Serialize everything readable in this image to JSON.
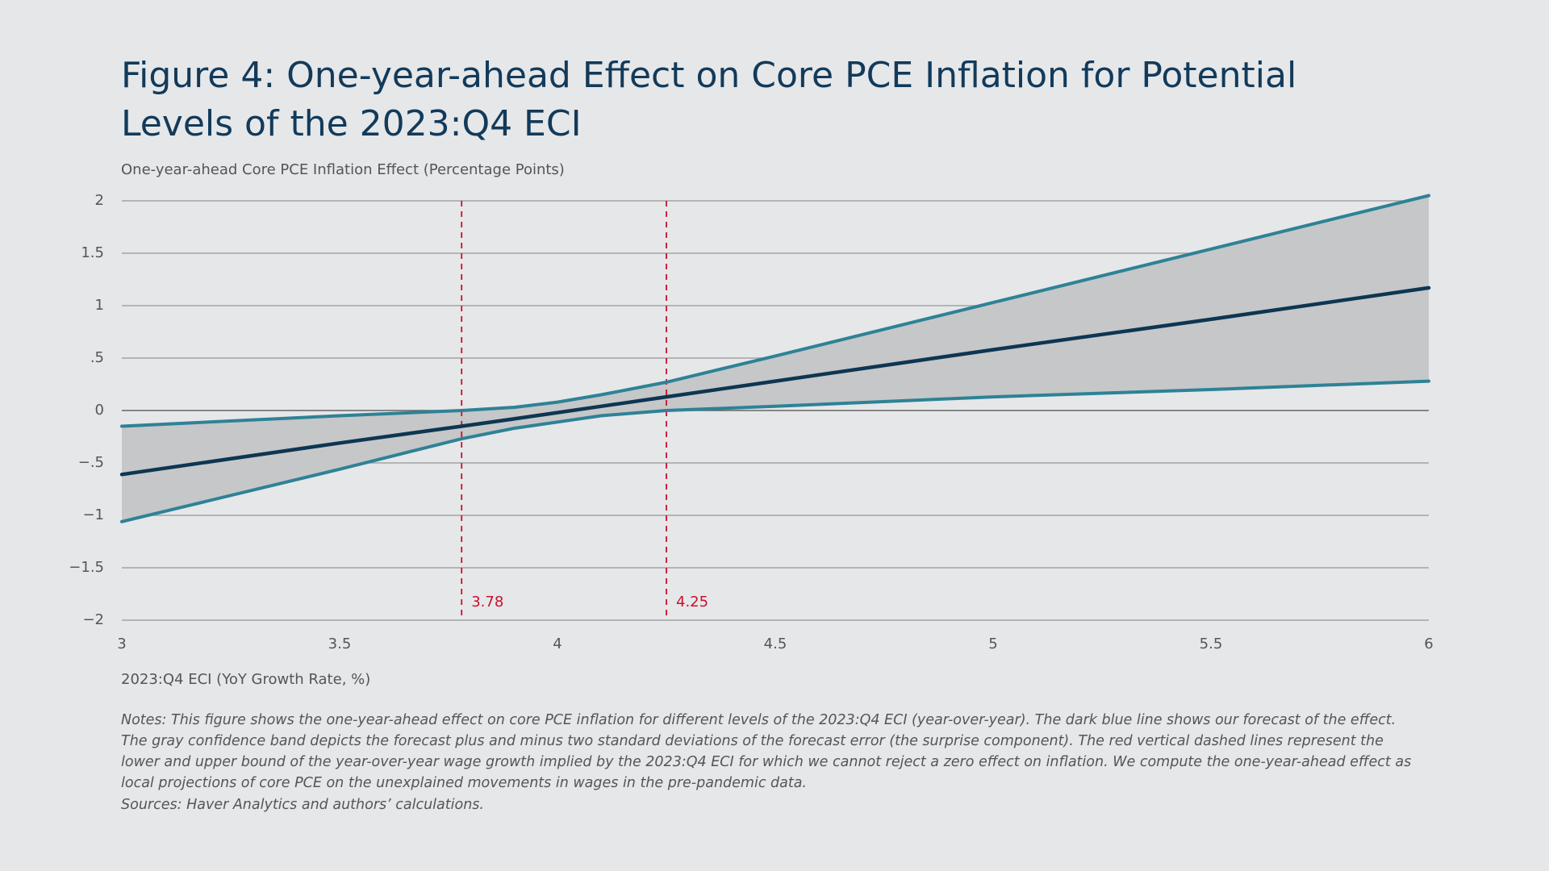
{
  "chart_data": {
    "type": "line",
    "title": "Figure 4: One-year-ahead Effect on Core PCE Inflation for Potential Levels of the 2023:Q4 ECI",
    "y_label": "One-year-ahead Core PCE Inflation Effect (Percentage Points)",
    "x_label": "2023:Q4 ECI (YoY Growth Rate, %)",
    "notes": "Notes: This figure shows the one-year-ahead effect on core PCE inflation for different levels of the 2023:Q4 ECI (year-over-year). The dark blue line shows our forecast of the effect. The gray confidence band depicts the forecast plus and minus two standard deviations of the forecast error (the surprise component). The red vertical dashed lines represent the lower and upper bound of the year-over-year wage growth implied by the 2023:Q4 ECI for which we cannot reject a zero effect on inflation. We compute the one-year-ahead effect as local projections of core PCE on the unexplained movements in wages in the pre-pandemic data.",
    "sources": "Sources: Haver Analytics and authors’ calculations.",
    "x": [
      3,
      3.5,
      3.78,
      3.9,
      4,
      4.1,
      4.25,
      4.5,
      5,
      5.5,
      6
    ],
    "series": [
      {
        "role": "forecast",
        "color": "#0d3652",
        "values": [
          -0.61,
          -0.31,
          -0.15,
          -0.08,
          -0.02,
          0.04,
          0.13,
          0.28,
          0.58,
          0.87,
          1.17
        ]
      },
      {
        "role": "upper",
        "color": "#2e8296",
        "values": [
          -0.15,
          -0.05,
          0,
          0.03,
          0.08,
          0.15,
          0.27,
          0.52,
          1.03,
          1.54,
          2.05
        ]
      },
      {
        "role": "lower",
        "color": "#2e8296",
        "values": [
          -1.06,
          -0.56,
          -0.27,
          -0.17,
          -0.11,
          -0.05,
          0,
          0.04,
          0.13,
          0.2,
          0.28
        ]
      }
    ],
    "band_color": "#c6c7c9",
    "vlines": [
      3.78,
      4.25
    ],
    "vline_color": "#c8102e",
    "xlim": [
      3,
      6
    ],
    "ylim": [
      -2,
      2
    ],
    "xticks": [
      3,
      3.5,
      4,
      4.5,
      5,
      5.5,
      6
    ],
    "yticks": [
      {
        "value": 2,
        "label": "2"
      },
      {
        "value": 1.5,
        "label": "1.5"
      },
      {
        "value": 1,
        "label": "1"
      },
      {
        "value": 0.5,
        "label": ".5"
      },
      {
        "value": 0,
        "label": "0"
      },
      {
        "value": -0.5,
        "label": "−.5"
      },
      {
        "value": -1,
        "label": "−1"
      },
      {
        "value": -1.5,
        "label": "−1.5"
      },
      {
        "value": -2,
        "label": "−2"
      }
    ],
    "grid": true
  }
}
